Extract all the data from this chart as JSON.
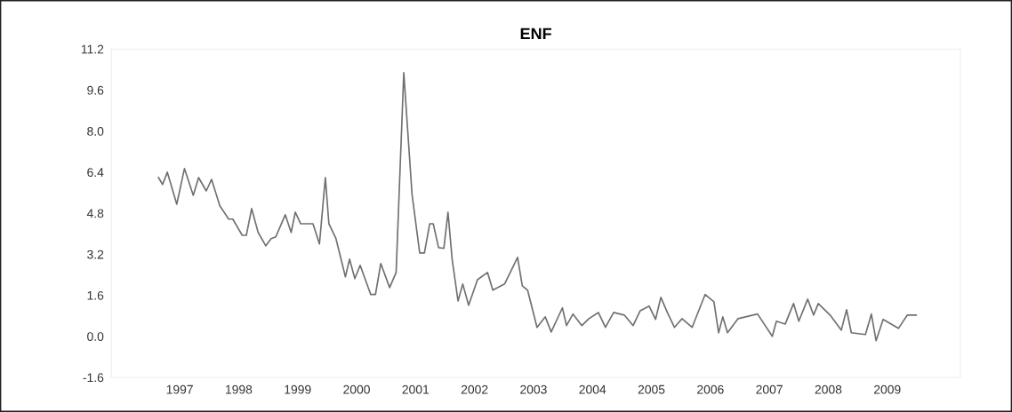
{
  "chart_data": {
    "type": "line",
    "title": "ENF",
    "x": [
      1996.64,
      1996.71,
      1996.79,
      1996.95,
      1997.08,
      1997.23,
      1997.32,
      1997.45,
      1997.54,
      1997.68,
      1997.83,
      1997.9,
      1998.06,
      1998.13,
      1998.22,
      1998.33,
      1998.46,
      1998.55,
      1998.63,
      1998.79,
      1998.89,
      1998.96,
      1999.05,
      1999.26,
      1999.37,
      1999.47,
      1999.53,
      1999.65,
      1999.81,
      1999.88,
      1999.97,
      2000.06,
      2000.24,
      2000.32,
      2000.41,
      2000.56,
      2000.67,
      2000.8,
      2000.94,
      2001.07,
      2001.15,
      2001.24,
      2001.3,
      2001.39,
      2001.48,
      2001.55,
      2001.62,
      2001.72,
      2001.8,
      2001.9,
      2002.05,
      2002.22,
      2002.31,
      2002.51,
      2002.73,
      2002.81,
      2002.9,
      2003.06,
      2003.2,
      2003.3,
      2003.49,
      2003.56,
      2003.67,
      2003.82,
      2003.94,
      2004.1,
      2004.22,
      2004.36,
      2004.54,
      2004.69,
      2004.81,
      2004.96,
      2005.07,
      2005.16,
      2005.27,
      2005.39,
      2005.52,
      2005.69,
      2005.91,
      2006.06,
      2006.14,
      2006.21,
      2006.29,
      2006.47,
      2006.8,
      2007.05,
      2007.12,
      2007.27,
      2007.41,
      2007.5,
      2007.65,
      2007.75,
      2007.83,
      2008.03,
      2008.22,
      2008.31,
      2008.39,
      2008.63,
      2008.73,
      2008.81,
      2008.93,
      2009.19,
      2009.34,
      2009.49
    ],
    "series": [
      {
        "color": "#707070",
        "values": [
          6.19,
          5.92,
          6.4,
          5.15,
          6.54,
          5.5,
          6.19,
          5.67,
          6.12,
          5.09,
          4.57,
          4.57,
          3.94,
          3.94,
          4.98,
          4.05,
          3.53,
          3.81,
          3.88,
          4.74,
          4.05,
          4.84,
          4.39,
          4.39,
          3.6,
          6.19,
          4.39,
          3.81,
          2.32,
          3.01,
          2.25,
          2.77,
          1.63,
          1.63,
          2.84,
          1.9,
          2.49,
          10.28,
          5.54,
          3.25,
          3.25,
          4.39,
          4.39,
          3.46,
          3.43,
          4.84,
          3.01,
          1.38,
          2.04,
          1.21,
          2.21,
          2.49,
          1.8,
          2.04,
          3.08,
          1.97,
          1.8,
          0.35,
          0.76,
          0.17,
          1.11,
          0.42,
          0.87,
          0.42,
          0.69,
          0.93,
          0.35,
          0.93,
          0.83,
          0.42,
          1.0,
          1.18,
          0.66,
          1.52,
          0.93,
          0.35,
          0.69,
          0.35,
          1.63,
          1.35,
          0.14,
          0.76,
          0.14,
          0.69,
          0.87,
          0.0,
          0.59,
          0.48,
          1.28,
          0.59,
          1.45,
          0.83,
          1.28,
          0.83,
          0.24,
          1.04,
          0.14,
          0.07,
          0.87,
          -0.17,
          0.66,
          0.31,
          0.83,
          0.83
        ]
      }
    ],
    "xlim": [
      1995.84,
      2010.24
    ],
    "xticks": [
      1997,
      1998,
      1999,
      2000,
      2001,
      2002,
      2003,
      2004,
      2005,
      2006,
      2007,
      2008,
      2009
    ],
    "ylim": [
      -1.6,
      11.2
    ],
    "yticks": [
      -1.6,
      {
        "value": 0,
        "label": "0.0"
      },
      1.6,
      3.2,
      4.8,
      6.4,
      {
        "value": 8,
        "label": "8.0"
      },
      9.6,
      11.2
    ],
    "grid": false,
    "marker": "none",
    "line_style": "solid"
  }
}
